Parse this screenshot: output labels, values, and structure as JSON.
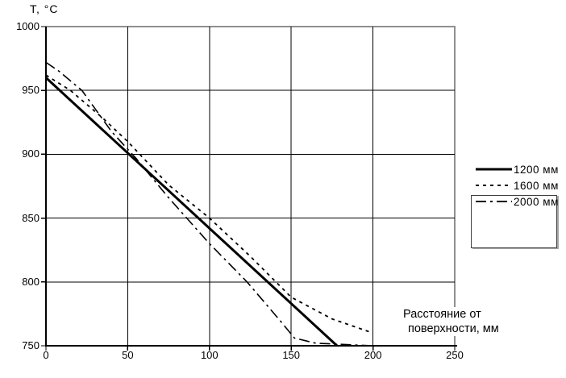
{
  "chart_data": {
    "type": "line",
    "title": "Т, °С",
    "xlabel_line1": "Расстояние от",
    "xlabel_line2": "поверхности, мм",
    "xlim": [
      0,
      250
    ],
    "ylim": [
      750,
      1000
    ],
    "x_tick_values": [
      0,
      50,
      100,
      150,
      200,
      250
    ],
    "x_tick_labels": [
      "0",
      "50",
      "100",
      "150",
      "200",
      "250"
    ],
    "y_tick_values": [
      1000,
      950,
      900,
      850,
      800,
      750
    ],
    "y_tick_labels": [
      "1000",
      "950",
      "900",
      "850",
      "800",
      "750"
    ],
    "grid": true,
    "legend_position": "right-outside",
    "colors": {
      "line": "#000000",
      "grid": "#000000",
      "frame_gray": "#8f8f8f",
      "text": "#000000",
      "background": "#ffffff"
    },
    "series": [
      {
        "name": "1200 мм",
        "pattern": "solid",
        "stroke_width": 3,
        "dash": "",
        "points": [
          [
            0,
            960
          ],
          [
            178,
            750
          ]
        ]
      },
      {
        "name": "1600 мм",
        "pattern": "dotted",
        "stroke_width": 1.8,
        "dash": "4 5",
        "points": [
          [
            0,
            962
          ],
          [
            15,
            950
          ],
          [
            35,
            928
          ],
          [
            50,
            910
          ],
          [
            75,
            876
          ],
          [
            100,
            850
          ],
          [
            125,
            820
          ],
          [
            150,
            788
          ],
          [
            175,
            771
          ],
          [
            200,
            760
          ]
        ]
      },
      {
        "name": "2000 мм",
        "pattern": "dash-dot",
        "stroke_width": 1.6,
        "dash": "13 5 3 5",
        "points": [
          [
            0,
            972
          ],
          [
            8,
            965
          ],
          [
            22,
            950
          ],
          [
            40,
            918
          ],
          [
            55,
            897
          ],
          [
            75,
            866
          ],
          [
            100,
            830
          ],
          [
            123,
            800
          ],
          [
            143,
            770
          ],
          [
            152,
            756
          ],
          [
            165,
            752
          ],
          [
            200,
            750
          ]
        ]
      }
    ]
  }
}
